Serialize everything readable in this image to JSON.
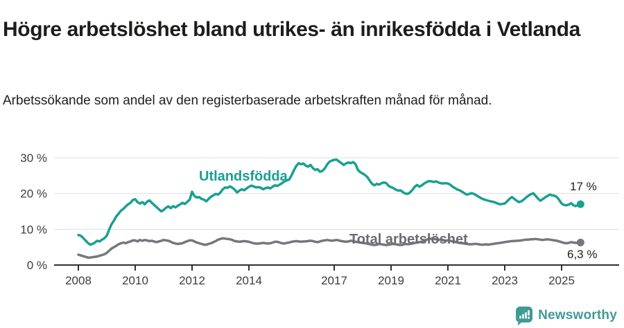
{
  "header": {
    "title": "Högre arbetslöshet bland utrikes- än inrikesfödda i Vetlanda",
    "subtitle": "Arbetssökande som andel av den registerbaserade arbetskraften månad för månad."
  },
  "chart_data": {
    "type": "line",
    "title": "Högre arbetslöshet bland utrikes- än inrikesfödda i Vetlanda",
    "xlabel": "",
    "ylabel": "Arbetssökande som andel av den registerbaserade arbetskraften",
    "x_unit": "month",
    "x_start_year": 2008,
    "x_end": "2025-09",
    "x_tick_years": [
      2008,
      2010,
      2012,
      2014,
      2017,
      2019,
      2021,
      2023,
      2025
    ],
    "x_tick_labels": [
      "2008",
      "2010",
      "2012",
      "2014",
      "2017",
      "2019",
      "2021",
      "2023",
      "2025"
    ],
    "y_ticks": [
      0,
      10,
      20,
      30
    ],
    "y_tick_labels": [
      "0 %",
      "10 %",
      "20 %",
      "30 %"
    ],
    "ylim": [
      0,
      32
    ],
    "grid": "horizontal",
    "legend_position": "inline-labels",
    "series": [
      {
        "name": "Utlandsfödda",
        "color": "#18a092",
        "end_label": "17 %",
        "end_value": 17,
        "values": [
          8.4,
          8.2,
          7.6,
          6.9,
          6.2,
          5.7,
          5.9,
          6.3,
          6.8,
          6.6,
          7.1,
          7.5,
          8.2,
          9.9,
          11.4,
          12.4,
          13.6,
          14.4,
          15.2,
          15.7,
          16.4,
          17.0,
          17.4,
          18.2,
          18.4,
          17.6,
          17.2,
          17.6,
          17.0,
          17.7,
          18.1,
          17.4,
          16.8,
          16.2,
          15.6,
          15.0,
          15.4,
          16.0,
          16.4,
          15.9,
          16.5,
          16.1,
          16.6,
          17.0,
          17.4,
          17.1,
          17.7,
          18.3,
          20.5,
          19.3,
          18.9,
          19.0,
          18.5,
          18.3,
          17.8,
          18.5,
          19.1,
          19.5,
          19.9,
          19.7,
          20.3,
          21.2,
          21.7,
          21.6,
          22.0,
          21.6,
          21.1,
          20.3,
          20.8,
          21.2,
          20.9,
          21.4,
          21.9,
          22.2,
          22.0,
          21.7,
          21.8,
          21.6,
          21.2,
          21.5,
          21.7,
          21.4,
          21.9,
          22.3,
          22.1,
          22.5,
          22.9,
          23.4,
          23.7,
          23.9,
          25.1,
          26.5,
          27.7,
          28.5,
          28.2,
          28.4,
          27.8,
          27.5,
          28.0,
          27.1,
          26.6,
          26.8,
          26.1,
          26.3,
          27.0,
          28.1,
          28.9,
          29.2,
          29.4,
          29.5,
          29.0,
          28.5,
          28.0,
          28.4,
          28.7,
          28.5,
          28.8,
          28.2,
          26.6,
          26.0,
          25.6,
          25.2,
          24.6,
          23.6,
          22.7,
          22.3,
          22.7,
          22.5,
          22.9,
          23.1,
          22.9,
          22.1,
          21.8,
          21.5,
          21.1,
          20.8,
          20.9,
          20.4,
          20.0,
          19.9,
          20.3,
          21.0,
          21.9,
          22.4,
          21.9,
          22.3,
          22.8,
          23.2,
          23.5,
          23.4,
          23.2,
          23.4,
          23.1,
          22.9,
          22.8,
          22.9,
          22.8,
          22.5,
          21.9,
          21.5,
          21.1,
          20.9,
          20.5,
          20.1,
          19.7,
          19.9,
          20.1,
          19.9,
          19.5,
          19.1,
          18.7,
          18.4,
          18.2,
          18.0,
          17.8,
          17.7,
          17.5,
          17.2,
          17.0,
          17.1,
          17.2,
          17.8,
          18.5,
          19.0,
          18.5,
          18.0,
          17.6,
          17.8,
          18.3,
          18.9,
          19.4,
          19.8,
          20.1,
          19.4,
          18.6,
          18.0,
          18.4,
          18.9,
          19.3,
          19.7,
          19.5,
          19.4,
          19.0,
          18.2,
          17.2,
          16.8,
          16.7,
          16.9,
          17.3,
          16.7,
          16.5,
          16.8,
          17.0
        ]
      },
      {
        "name": "Total arbetslöshet",
        "color": "#76767b",
        "end_label": "6,3 %",
        "end_value": 6.3,
        "values": [
          2.9,
          2.7,
          2.5,
          2.3,
          2.1,
          2.1,
          2.2,
          2.3,
          2.4,
          2.6,
          2.8,
          3.0,
          3.4,
          4.0,
          4.6,
          5.0,
          5.4,
          5.8,
          6.1,
          6.3,
          6.1,
          6.4,
          6.6,
          6.9,
          6.9,
          6.6,
          7.0,
          6.8,
          7.0,
          6.9,
          6.7,
          6.8,
          6.6,
          6.4,
          6.6,
          6.8,
          7.0,
          6.9,
          6.8,
          6.5,
          6.2,
          6.0,
          5.9,
          6.0,
          6.1,
          6.4,
          6.7,
          6.9,
          6.9,
          6.6,
          6.3,
          6.1,
          5.9,
          5.7,
          5.7,
          5.9,
          6.1,
          6.4,
          6.7,
          7.1,
          7.3,
          7.5,
          7.4,
          7.3,
          7.2,
          7.0,
          6.7,
          6.6,
          6.5,
          6.6,
          6.7,
          6.6,
          6.5,
          6.3,
          6.1,
          6.0,
          6.0,
          6.1,
          6.2,
          6.1,
          6.0,
          6.1,
          6.3,
          6.5,
          6.5,
          6.3,
          6.1,
          6.0,
          6.2,
          6.3,
          6.5,
          6.6,
          6.7,
          6.6,
          6.5,
          6.6,
          6.6,
          6.7,
          6.8,
          6.7,
          6.5,
          6.4,
          6.6,
          6.8,
          6.9,
          7.0,
          6.9,
          6.8,
          6.9,
          7.0,
          6.9,
          6.7,
          6.6,
          6.5,
          6.6,
          6.8,
          6.7,
          6.5,
          6.4,
          6.3,
          6.2,
          6.1,
          6.0,
          5.8,
          5.7,
          5.6,
          5.7,
          5.9,
          5.8,
          5.7,
          5.6,
          5.7,
          5.8,
          5.9,
          5.8,
          5.7,
          5.6,
          5.7,
          5.9,
          5.8,
          5.9,
          6.0,
          6.2,
          6.3,
          6.4,
          6.5,
          6.8,
          7.1,
          7.3,
          7.4,
          7.3,
          7.2,
          7.1,
          7.0,
          6.9,
          6.8,
          6.9,
          6.8,
          6.6,
          6.5,
          6.3,
          6.2,
          6.1,
          6.0,
          5.9,
          5.8,
          5.8,
          5.9,
          5.9,
          5.8,
          5.7,
          5.7,
          5.8,
          5.7,
          5.8,
          5.9,
          6.0,
          6.1,
          6.2,
          6.3,
          6.4,
          6.5,
          6.6,
          6.7,
          6.7,
          6.8,
          6.8,
          6.9,
          7.0,
          7.1,
          7.1,
          7.2,
          7.2,
          7.3,
          7.2,
          7.1,
          7.0,
          7.1,
          7.2,
          7.1,
          7.0,
          6.9,
          6.8,
          6.6,
          6.4,
          6.2,
          6.1,
          6.2,
          6.4,
          6.3,
          6.2,
          6.2,
          6.3
        ]
      }
    ]
  },
  "colors": {
    "teal": "#18a092",
    "line_gray": "#76767b",
    "label_gray": "#6b6b70",
    "axis": "#2f2f2f",
    "gridline": "#dddddd",
    "text": "#1d1d1b",
    "brand_teal": "#3f9b95"
  },
  "footer": {
    "brand": "Newsworthy"
  }
}
